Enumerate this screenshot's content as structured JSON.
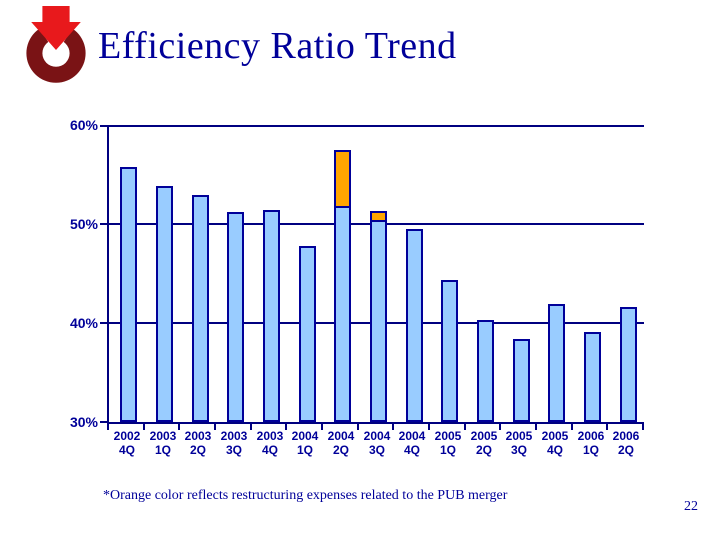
{
  "slide": {
    "background": "#FFFFFF",
    "page_number": "22"
  },
  "header": {
    "title": "Efficiency Ratio Trend",
    "title_color": "#000099",
    "logo": {
      "name": "ring-and-arrow-logo",
      "ring_color": "#7A1315",
      "arrow_color": "#E8191C"
    }
  },
  "footnote": "*Orange color reflects restructuring expenses related to the PUB merger",
  "chart_data": {
    "type": "bar",
    "stacked": true,
    "title": "Efficiency Ratio Trend",
    "categories": [
      [
        "2002",
        "4Q"
      ],
      [
        "2003",
        "1Q"
      ],
      [
        "2003",
        "2Q"
      ],
      [
        "2003",
        "3Q"
      ],
      [
        "2003",
        "4Q"
      ],
      [
        "2004",
        "1Q"
      ],
      [
        "2004",
        "2Q"
      ],
      [
        "2004",
        "3Q"
      ],
      [
        "2004",
        "4Q"
      ],
      [
        "2005",
        "1Q"
      ],
      [
        "2005",
        "2Q"
      ],
      [
        "2005",
        "3Q"
      ],
      [
        "2005",
        "4Q"
      ],
      [
        "2006",
        "1Q"
      ],
      [
        "2006",
        "2Q"
      ]
    ],
    "series": [
      {
        "name": "Efficiency ratio",
        "color": "#99CCFF",
        "values": [
          55.8,
          53.8,
          52.9,
          51.2,
          51.4,
          47.8,
          51.8,
          50.4,
          49.5,
          44.3,
          40.3,
          38.4,
          41.9,
          39.1,
          41.6
        ]
      },
      {
        "name": "Restructuring expenses related to the PUB merger",
        "color": "#FFA500",
        "values": [
          0,
          0,
          0,
          0,
          0,
          0,
          5.7,
          0.9,
          0,
          0,
          0,
          0,
          0,
          0,
          0
        ]
      }
    ],
    "ylim": [
      30,
      60
    ],
    "yticks": [
      60,
      50,
      40,
      30
    ],
    "ytick_labels": [
      "60%",
      "50%",
      "40%",
      "30%"
    ],
    "grid": true,
    "legend_position": "none",
    "axis_color": "#000080",
    "bar_border_color": "#000099",
    "annotation": "*Orange color reflects restructuring expenses related to the PUB merger"
  }
}
